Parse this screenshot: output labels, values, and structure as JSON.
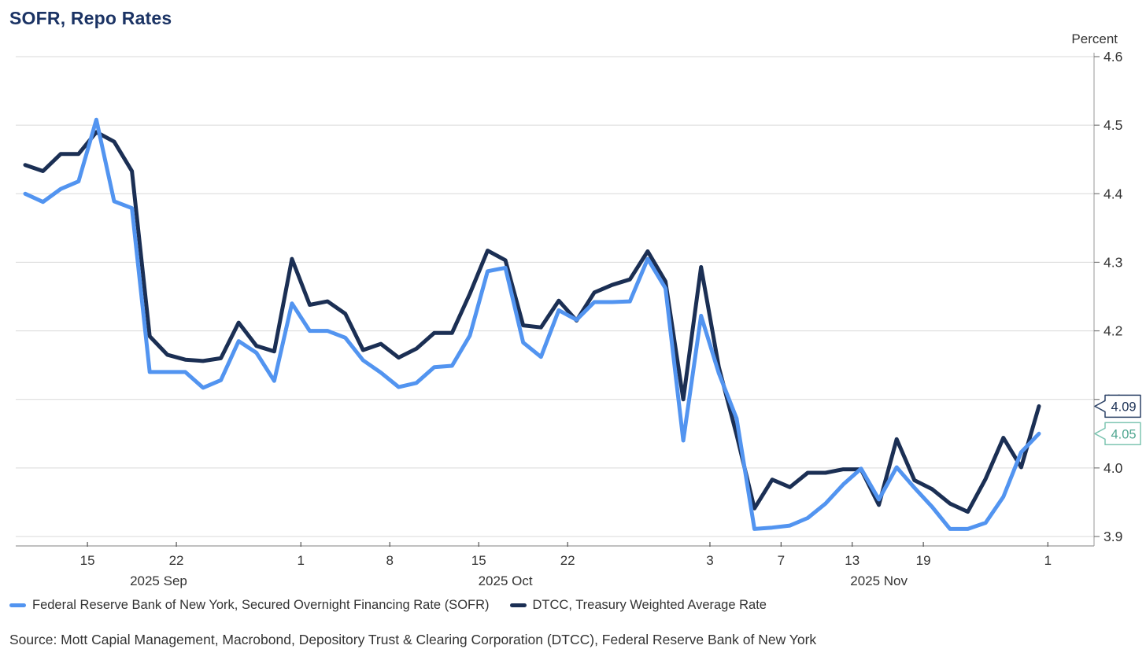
{
  "page": {
    "title": "SOFR, Repo Rates",
    "unit_label": "Percent",
    "source": "Source: Mott Capial Management, Macrobond, Depository Trust & Clearing Corporation (DTCC), Federal Reserve Bank of New York"
  },
  "legend": {
    "items": [
      {
        "id": "sofr",
        "label": "Federal Reserve Bank of New York, Secured Overnight Financing Rate (SOFR)",
        "color": "#5294F0"
      },
      {
        "id": "dtcc",
        "label": "DTCC, Treasury Weighted Average Rate",
        "color": "#1B2F54"
      }
    ]
  },
  "chart_data": {
    "type": "line",
    "title": "SOFR, Repo Rates",
    "ylabel": "Percent",
    "ylim": [
      3.9,
      4.6
    ],
    "grid": true,
    "legend_position": "bottom",
    "y_ticks": [
      {
        "value": 4.6,
        "label": "4.6"
      },
      {
        "value": 4.5,
        "label": "4.5"
      },
      {
        "value": 4.4,
        "label": "4.4"
      },
      {
        "value": 4.3,
        "label": "4.3"
      },
      {
        "value": 4.2,
        "label": "4.2"
      },
      {
        "value": 4.1,
        "label": "4.1"
      },
      {
        "value": 4.0,
        "label": "4.0"
      },
      {
        "value": 3.9,
        "label": "3.9"
      }
    ],
    "x": [
      "2025-09-09",
      "2025-09-10",
      "2025-09-11",
      "2025-09-12",
      "2025-09-15",
      "2025-09-16",
      "2025-09-17",
      "2025-09-18",
      "2025-09-19",
      "2025-09-22",
      "2025-09-23",
      "2025-09-24",
      "2025-09-25",
      "2025-09-26",
      "2025-09-29",
      "2025-09-30",
      "2025-10-01",
      "2025-10-02",
      "2025-10-03",
      "2025-10-06",
      "2025-10-07",
      "2025-10-08",
      "2025-10-09",
      "2025-10-10",
      "2025-10-13",
      "2025-10-14",
      "2025-10-15",
      "2025-10-16",
      "2025-10-17",
      "2025-10-20",
      "2025-10-21",
      "2025-10-22",
      "2025-10-23",
      "2025-10-24",
      "2025-10-27",
      "2025-10-28",
      "2025-10-29",
      "2025-10-30",
      "2025-10-31",
      "2025-11-03",
      "2025-11-04",
      "2025-11-05",
      "2025-11-06",
      "2025-11-07",
      "2025-11-10",
      "2025-11-11",
      "2025-11-12",
      "2025-11-13",
      "2025-11-14",
      "2025-11-17",
      "2025-11-18",
      "2025-11-19",
      "2025-11-20",
      "2025-11-21",
      "2025-11-24",
      "2025-11-25",
      "2025-11-26",
      "2025-11-28"
    ],
    "x_ticks": [
      {
        "label": "15",
        "boundary": 3.5
      },
      {
        "label": "22",
        "boundary": 8.5
      },
      {
        "label": "1",
        "boundary": 15.5
      },
      {
        "label": "8",
        "boundary": 20.5
      },
      {
        "label": "15",
        "boundary": 25.5
      },
      {
        "label": "22",
        "boundary": 30.5
      },
      {
        "label": "3",
        "boundary": 38.5
      },
      {
        "label": "7",
        "boundary": 42.5
      },
      {
        "label": "13",
        "boundary": 46.5
      },
      {
        "label": "19",
        "boundary": 50.5
      },
      {
        "label": "1",
        "boundary": 57.5
      }
    ],
    "month_labels": [
      {
        "label": "2025 Sep",
        "center_index": 7.5
      },
      {
        "label": "2025 Oct",
        "center_index": 27
      },
      {
        "label": "2025 Nov",
        "center_index": 48
      }
    ],
    "series": [
      {
        "name": "DTCC, Treasury Weighted Average Rate",
        "color": "#1B2F54",
        "values": [
          4.442,
          4.433,
          4.458,
          4.458,
          4.49,
          4.476,
          4.433,
          4.192,
          4.165,
          4.158,
          4.156,
          4.16,
          4.212,
          4.178,
          4.17,
          4.305,
          4.238,
          4.243,
          4.225,
          4.172,
          4.181,
          4.161,
          4.174,
          4.197,
          4.197,
          4.254,
          4.317,
          4.303,
          4.208,
          4.205,
          4.244,
          4.215,
          4.256,
          4.267,
          4.275,
          4.316,
          4.272,
          4.1,
          4.293,
          4.147,
          4.048,
          3.941,
          3.983,
          3.972,
          3.993,
          3.993,
          3.998,
          3.998,
          3.946,
          4.042,
          3.982,
          3.969,
          3.948,
          3.936,
          3.984,
          4.044,
          4.001,
          4.09
        ]
      },
      {
        "name": "Federal Reserve Bank of New York, Secured Overnight Financing Rate (SOFR)",
        "color": "#5294F0",
        "values": [
          4.4,
          4.388,
          4.407,
          4.418,
          4.508,
          4.389,
          4.379,
          4.14,
          4.14,
          4.14,
          4.117,
          4.128,
          4.185,
          4.168,
          4.127,
          4.24,
          4.2,
          4.2,
          4.19,
          4.157,
          4.139,
          4.118,
          4.124,
          4.147,
          4.149,
          4.193,
          4.287,
          4.292,
          4.183,
          4.162,
          4.23,
          4.216,
          4.242,
          4.242,
          4.243,
          4.305,
          4.262,
          4.04,
          4.222,
          4.138,
          4.072,
          3.911,
          3.913,
          3.916,
          3.927,
          3.948,
          3.976,
          3.999,
          3.954,
          4.001,
          3.971,
          3.943,
          3.911,
          3.911,
          3.92,
          3.958,
          4.023,
          4.05
        ]
      }
    ],
    "callouts": [
      {
        "label": "4.09",
        "value": 4.09,
        "border_color": "#2E4468",
        "text_color": "#1B3054",
        "series": "dtcc"
      },
      {
        "label": "4.05",
        "value": 4.05,
        "border_color": "#7EC5B2",
        "text_color": "#4FA690",
        "series": "sofr"
      }
    ]
  }
}
